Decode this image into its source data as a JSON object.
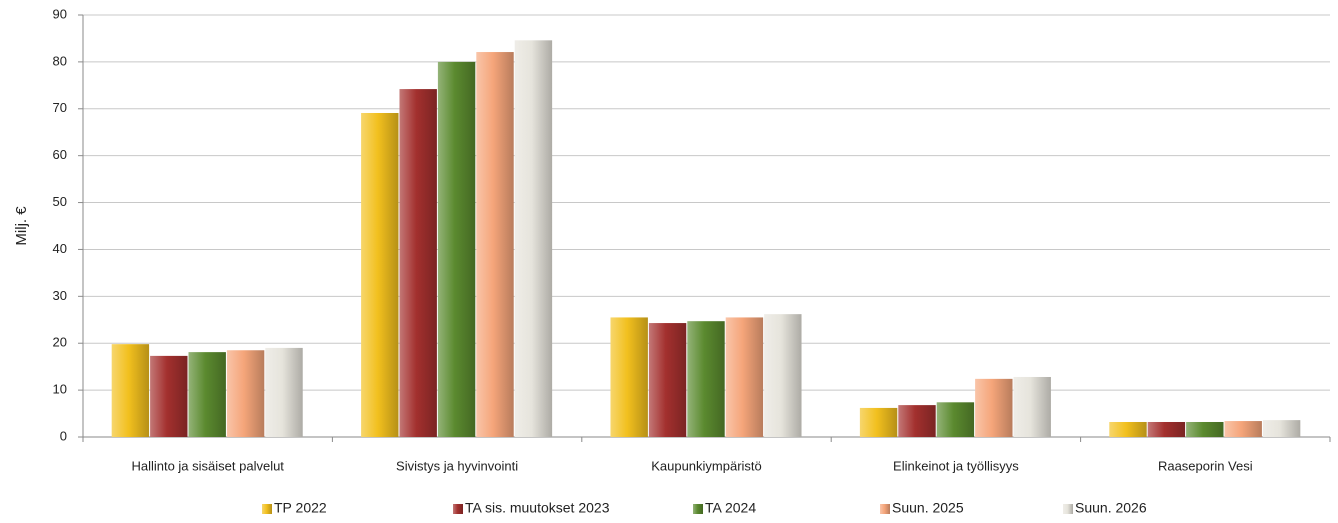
{
  "chart_data": {
    "type": "bar",
    "ylabel": "Milj. €",
    "categories": [
      "Hallinto ja sisäiset palvelut",
      "Sivistys ja hyvinvointi",
      "Kaupunkiympäristö",
      "Elinkeinot ja työllisyys",
      "Raaseporin Vesi"
    ],
    "series": [
      {
        "name": "TP 2022",
        "color": "#f2c01e",
        "values": [
          19.8,
          69.1,
          25.5,
          6.2,
          3.2
        ]
      },
      {
        "name": "TA sis. muutokset 2023",
        "color": "#a3302e",
        "values": [
          17.3,
          74.2,
          24.3,
          6.8,
          3.2
        ]
      },
      {
        "name": "TA 2024",
        "color": "#5b8a2f",
        "values": [
          18.1,
          80.0,
          24.7,
          7.4,
          3.2
        ]
      },
      {
        "name": "Suun. 2025",
        "color": "#f5a57a",
        "values": [
          18.5,
          82.1,
          25.5,
          12.4,
          3.4
        ]
      },
      {
        "name": "Suun. 2026",
        "color": "#e6e4dc",
        "values": [
          19.0,
          84.6,
          26.2,
          12.8,
          3.6
        ]
      }
    ],
    "ylim": [
      0,
      90
    ],
    "yticks": [
      0,
      10,
      20,
      30,
      40,
      50,
      60,
      70,
      80,
      90
    ],
    "grid": true,
    "legend": "bottom"
  }
}
